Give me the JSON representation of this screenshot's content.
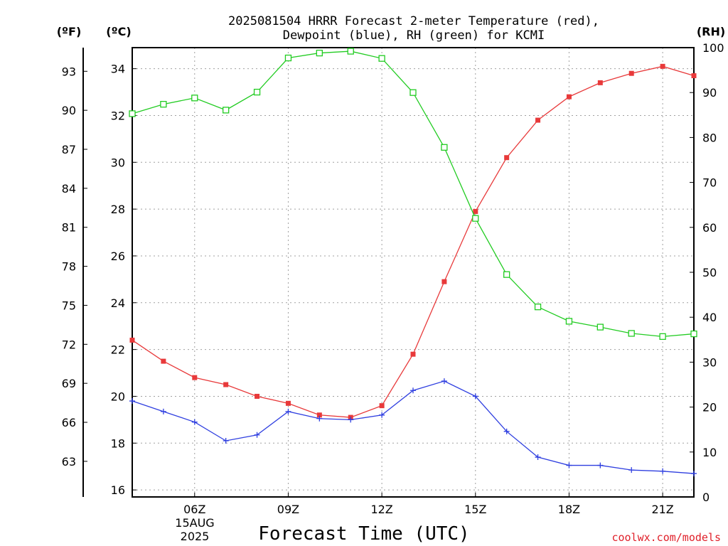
{
  "chart_data": {
    "type": "line",
    "title_line1": "2025081504 HRRR Forecast 2-meter Temperature (red),",
    "title_line2": "Dewpoint (blue), RH (green) for KCMI",
    "xlabel": "Forecast Time (UTC)",
    "date_labels": [
      "15AUG",
      "2025"
    ],
    "credit": "coolwx.com/models",
    "unit_f": "(ºF)",
    "unit_c": "(ºC)",
    "unit_rh": "(RH)",
    "x_hours": [
      4,
      5,
      6,
      7,
      8,
      9,
      10,
      11,
      12,
      13,
      14,
      15,
      16,
      17,
      18,
      19,
      20,
      21,
      22
    ],
    "x_ticks": [
      {
        "hour": 6,
        "label": "06Z"
      },
      {
        "hour": 9,
        "label": "09Z"
      },
      {
        "hour": 12,
        "label": "12Z"
      },
      {
        "hour": 15,
        "label": "15Z"
      },
      {
        "hour": 18,
        "label": "18Z"
      },
      {
        "hour": 21,
        "label": "21Z"
      }
    ],
    "celsius_axis": {
      "range": [
        15.7,
        34.9
      ],
      "ticks": [
        16,
        18,
        20,
        22,
        24,
        26,
        28,
        30,
        32,
        34
      ]
    },
    "fahrenheit_ticks": [
      63,
      66,
      69,
      72,
      75,
      78,
      81,
      84,
      87,
      90,
      93
    ],
    "rh_axis": {
      "range": [
        0,
        100
      ],
      "ticks": [
        0,
        10,
        20,
        30,
        40,
        50,
        60,
        70,
        80,
        90,
        100
      ]
    },
    "grid": true,
    "series": [
      {
        "name": "Temperature",
        "axis": "celsius",
        "color": "#e8393a",
        "marker": "filled-square",
        "values": [
          22.4,
          21.5,
          20.8,
          20.5,
          20.0,
          19.7,
          19.2,
          19.1,
          19.6,
          21.8,
          24.9,
          27.9,
          30.2,
          31.8,
          32.8,
          33.4,
          33.8,
          34.1,
          33.7
        ]
      },
      {
        "name": "Dewpoint",
        "axis": "celsius",
        "color": "#2f3fe0",
        "marker": "plus",
        "values": [
          19.8,
          19.35,
          18.9,
          18.1,
          18.35,
          19.35,
          19.05,
          19.0,
          19.2,
          20.25,
          20.65,
          20.0,
          18.5,
          17.4,
          17.05,
          17.05,
          16.85,
          16.8,
          16.7
        ]
      },
      {
        "name": "RH",
        "axis": "rh",
        "color": "#22cc22",
        "marker": "open-square",
        "values": [
          85.3,
          87.4,
          88.8,
          86.1,
          90.1,
          97.7,
          98.8,
          99.2,
          97.6,
          90.0,
          77.8,
          62.0,
          49.5,
          42.3,
          39.1,
          37.8,
          36.4,
          35.7,
          36.3
        ]
      }
    ]
  }
}
